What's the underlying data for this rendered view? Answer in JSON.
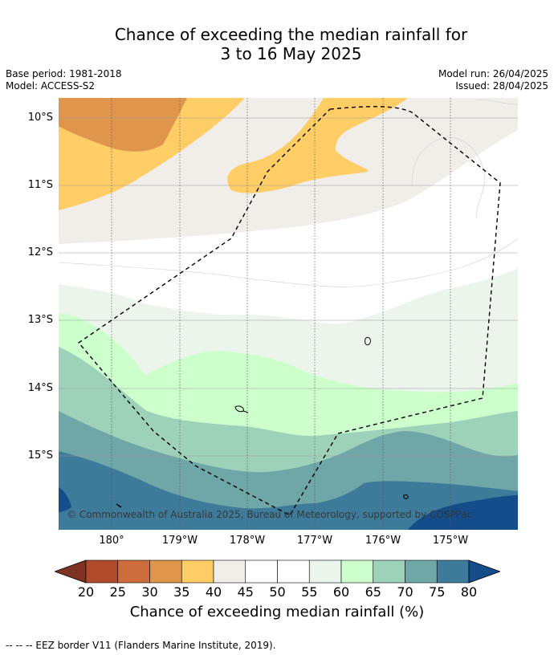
{
  "title": {
    "line1": "Chance of exceeding the median rainfall for",
    "line2": "3 to 16 May 2025"
  },
  "meta": {
    "base_period": "Base period: 1981-2018",
    "model": "Model: ACCESS-S2",
    "model_run": "Model run: 26/04/2025",
    "issued": "Issued: 28/04/2025"
  },
  "map": {
    "lat_labels": [
      "10°S",
      "11°S",
      "12°S",
      "13°S",
      "14°S",
      "15°S"
    ],
    "lon_labels": [
      "180°",
      "179°W",
      "178°W",
      "177°W",
      "176°W",
      "175°W"
    ],
    "copyright": "© Commonwealth of Australia 2025, Bureau of Meteorology, supported by COSPPac",
    "colors": {
      "c30_35": "#e0954d",
      "c35_40": "#ffcd66",
      "c40_45": "#f1ede9",
      "c45_55": "#ffffff",
      "c55_60": "#ebf5eb",
      "c60_65": "#ccffcc",
      "c65_70": "#9ed1b9",
      "c70_75": "#6fa6a7",
      "c75_80": "#3e7a99",
      "c80": "#154d8a"
    }
  },
  "colorbar": {
    "ticks": [
      "20",
      "25",
      "30",
      "35",
      "40",
      "45",
      "50",
      "55",
      "60",
      "65",
      "70",
      "75",
      "80"
    ],
    "colors": [
      "#7f3221",
      "#b04a2a",
      "#cd6d3b",
      "#e0954d",
      "#ffcd66",
      "#f1ede9",
      "#ffffff",
      "#ffffff",
      "#ebf5eb",
      "#ccffcc",
      "#9ed1b9",
      "#6fa6a7",
      "#3e7a99",
      "#154d8a"
    ],
    "label": "Chance of exceeding median rainfall (%)"
  },
  "footer": "--  --  -- EEZ border V11 (Flanders Marine Institute, 2019)."
}
